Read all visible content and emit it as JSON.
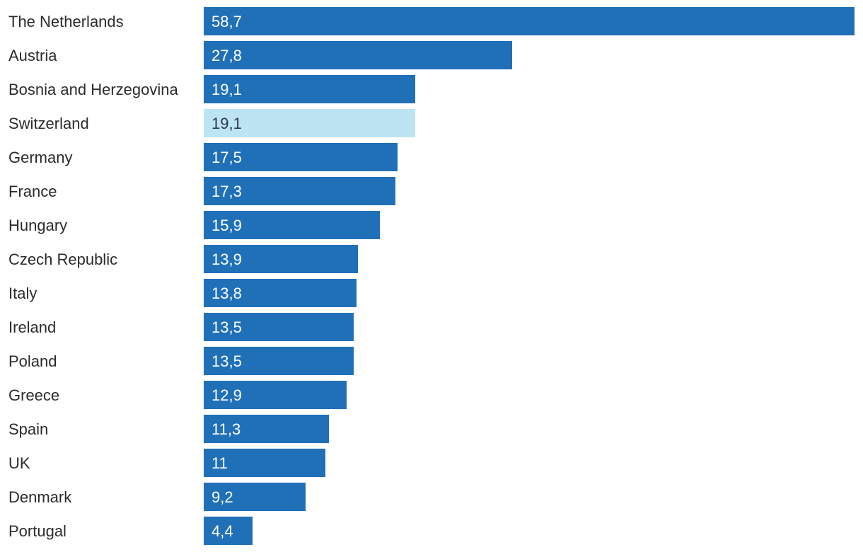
{
  "colors": {
    "bar": "#2070b8",
    "bar_highlight": "#bde4f2",
    "value_text": "#ffffff",
    "value_text_highlight": "#2b3a4a",
    "category_text": "#2b2b2b"
  },
  "chart_data": {
    "type": "bar",
    "orientation": "horizontal",
    "title": "",
    "xlabel": "",
    "ylabel": "",
    "grid": false,
    "legend": "none",
    "xlim": [
      0,
      58.7
    ],
    "categories": [
      "The Netherlands",
      "Austria",
      "Bosnia and Herzegovina",
      "Switzerland",
      "Germany",
      "France",
      "Hungary",
      "Czech Republic",
      "Italy",
      "Ireland",
      "Poland",
      "Greece",
      "Spain",
      "UK",
      "Denmark",
      "Portugal"
    ],
    "values": [
      58.7,
      27.8,
      19.1,
      19.1,
      17.5,
      17.3,
      15.9,
      13.9,
      13.8,
      13.5,
      13.5,
      12.9,
      11.3,
      11,
      9.2,
      4.4
    ],
    "value_labels": [
      "58,7",
      "27,8",
      "19,1",
      "19,1",
      "17,5",
      "17,3",
      "15,9",
      "13,9",
      "13,8",
      "13,5",
      "13,5",
      "12,9",
      "11,3",
      "11",
      "9,2",
      "4,4"
    ],
    "highlighted_category": "Switzerland"
  }
}
